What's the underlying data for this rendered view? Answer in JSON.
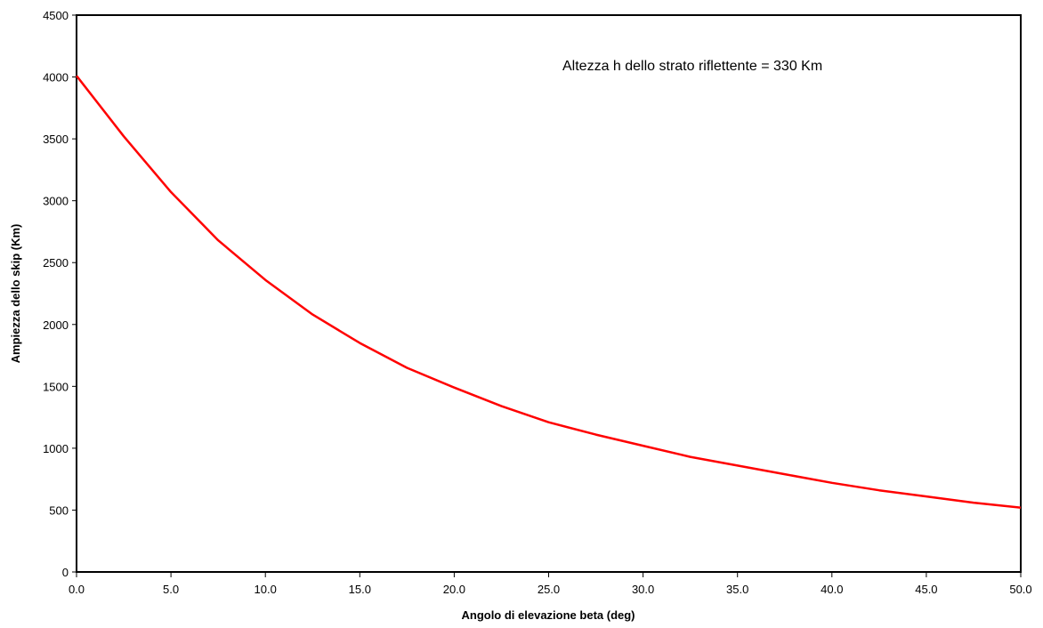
{
  "chart_data": {
    "type": "line",
    "title": "",
    "xlabel": "Angolo di elevazione beta (deg)",
    "ylabel": "Ampiezza dello skip (Km)",
    "annotation": "Altezza h dello strato riflettente = 330 Km",
    "xlim": [
      0,
      50
    ],
    "ylim": [
      0,
      4500
    ],
    "x_ticks": [
      "0.0",
      "5.0",
      "10.0",
      "15.0",
      "20.0",
      "25.0",
      "30.0",
      "35.0",
      "40.0",
      "45.0",
      "50.0"
    ],
    "y_ticks": [
      "0",
      "500",
      "1000",
      "1500",
      "2000",
      "2500",
      "3000",
      "3500",
      "4000",
      "4500"
    ],
    "grid": false,
    "legend": "none",
    "line_color": "#ff0000",
    "series": [
      {
        "x": [
          0,
          2.5,
          5,
          7.5,
          10,
          12.5,
          15,
          17.5,
          20,
          22.5,
          25,
          27.5,
          30,
          32.5,
          35,
          37.5,
          40,
          42.5,
          45,
          47.5,
          50
        ],
        "values": [
          4010,
          3520,
          3070,
          2680,
          2360,
          2080,
          1850,
          1650,
          1490,
          1340,
          1210,
          1110,
          1020,
          930,
          860,
          790,
          720,
          660,
          610,
          560,
          520
        ]
      }
    ]
  }
}
